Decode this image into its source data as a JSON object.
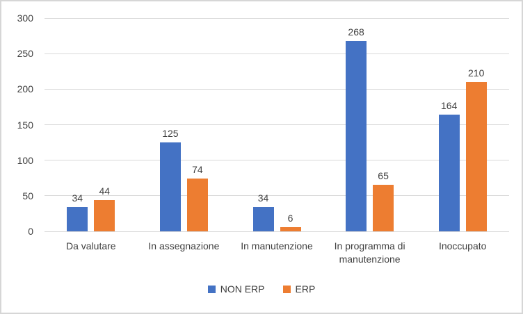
{
  "chart_data": {
    "type": "bar",
    "title": "",
    "xlabel": "",
    "ylabel": "",
    "categories": [
      "Da valutare",
      "In assegnazione",
      "In manutenzione",
      "In programma di manutenzione",
      "Inoccupato"
    ],
    "series": [
      {
        "name": "NON ERP",
        "color": "#4472C4",
        "values": [
          34,
          125,
          34,
          268,
          164
        ]
      },
      {
        "name": "ERP",
        "color": "#ED7D31",
        "values": [
          44,
          74,
          6,
          65,
          210
        ]
      }
    ],
    "ylim": [
      0,
      300
    ],
    "yticks": [
      0,
      50,
      100,
      150,
      200,
      250,
      300
    ],
    "grid": true,
    "data_labels": true,
    "legend_position": "bottom"
  },
  "colors": {
    "gridline": "#D9D9D9",
    "text": "#404040",
    "background": "#FFFFFF",
    "border": "#D6D6D6"
  }
}
